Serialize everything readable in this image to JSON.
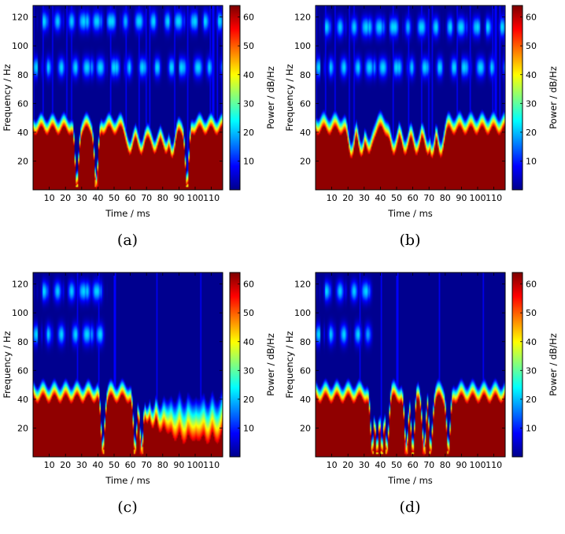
{
  "colormap": [
    "#00008f",
    "#0000ff",
    "#0080ff",
    "#00ffff",
    "#80ff80",
    "#ffff00",
    "#ff8000",
    "#ff0000",
    "#800000"
  ],
  "chart_data": [
    {
      "type": "heatmap",
      "caption": "(a)",
      "xlabel": "Time / ms",
      "ylabel": "Frequency / Hz",
      "colorbar_label": "Power / dB/Hz",
      "x_ticks": [
        10,
        20,
        30,
        40,
        50,
        60,
        70,
        80,
        90,
        100,
        110
      ],
      "y_ticks": [
        20,
        40,
        60,
        80,
        100,
        120
      ],
      "colorbar_ticks": [
        10,
        20,
        30,
        40,
        50,
        60
      ],
      "xlim": [
        0,
        117
      ],
      "ylim": [
        0,
        128
      ],
      "clim": [
        0,
        64
      ],
      "base_cutoff_hz": 41,
      "band_edge_hz": 52,
      "harmonic_bands_hz": [
        85,
        117
      ],
      "dips_ms": [
        27,
        39,
        60,
        67,
        75,
        82,
        86,
        95
      ],
      "deep_dips_ms": [
        27,
        39,
        95
      ]
    },
    {
      "type": "heatmap",
      "caption": "(b)",
      "xlabel": "Time / ms",
      "ylabel": "Frequency / Hz",
      "colorbar_label": "Power / dB/Hz",
      "x_ticks": [
        10,
        20,
        30,
        40,
        50,
        60,
        70,
        80,
        90,
        100,
        110
      ],
      "y_ticks": [
        20,
        40,
        60,
        80,
        100,
        120
      ],
      "colorbar_ticks": [
        10,
        20,
        30,
        40,
        50,
        60
      ],
      "xlim": [
        0,
        117
      ],
      "ylim": [
        0,
        128
      ],
      "clim": [
        0,
        64
      ],
      "base_cutoff_hz": 41,
      "band_edge_hz": 53,
      "harmonic_bands_hz": [
        85,
        113
      ],
      "dips_ms": [
        22,
        28,
        33,
        48,
        55,
        62,
        69,
        72,
        77
      ],
      "deep_dips_ms": []
    },
    {
      "type": "heatmap",
      "caption": "(c)",
      "xlabel": "Time / ms",
      "ylabel": "Frequency / Hz",
      "colorbar_label": "Power / dB/Hz",
      "x_ticks": [
        10,
        20,
        30,
        40,
        50,
        60,
        70,
        80,
        90,
        100,
        110
      ],
      "y_ticks": [
        20,
        40,
        60,
        80,
        100,
        120
      ],
      "colorbar_ticks": [
        10,
        20,
        30,
        40,
        50,
        60
      ],
      "xlim": [
        0,
        117
      ],
      "ylim": [
        0,
        128
      ],
      "clim": [
        0,
        64
      ],
      "base_cutoff_hz": 40,
      "band_edge_hz": 52,
      "harmonic_bands_hz": [
        85,
        115
      ],
      "harmonic_end_ms": 42,
      "dips_ms": [
        43,
        63,
        67,
        70,
        74,
        78,
        83,
        88,
        93,
        98,
        103,
        108,
        113
      ],
      "deep_dips_ms": [
        43,
        63,
        67
      ],
      "fade_start_ms": 70
    },
    {
      "type": "heatmap",
      "caption": "(d)",
      "xlabel": "Time / ms",
      "ylabel": "Frequency / Hz",
      "colorbar_label": "Power / dB/Hz",
      "x_ticks": [
        10,
        20,
        30,
        40,
        50,
        60,
        70,
        80,
        90,
        100,
        110
      ],
      "y_ticks": [
        20,
        40,
        60,
        80,
        100,
        120
      ],
      "colorbar_ticks": [
        10,
        20,
        30,
        40,
        50,
        60
      ],
      "xlim": [
        0,
        117
      ],
      "ylim": [
        0,
        128
      ],
      "clim": [
        0,
        64
      ],
      "base_cutoff_hz": 40,
      "band_edge_hz": 52,
      "harmonic_bands_hz": [
        85,
        115
      ],
      "harmonic_end_ms": 32,
      "dips_ms": [
        35,
        38,
        41,
        44,
        56,
        60,
        67,
        71,
        82
      ],
      "deep_dips_ms": [
        35,
        38,
        41,
        44,
        56,
        60,
        67,
        71,
        82
      ]
    }
  ]
}
